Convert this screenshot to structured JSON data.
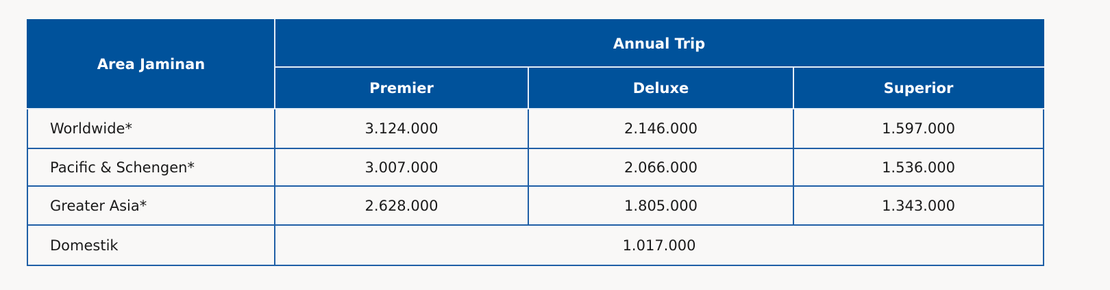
{
  "table": {
    "header_area": "Area Jaminan",
    "header_group": "Annual Trip",
    "columns": [
      "Premier",
      "Deluxe",
      "Superior"
    ],
    "rows": [
      {
        "area": "Worldwide*",
        "values": [
          "3.124.000",
          "2.146.000",
          "1.597.000"
        ]
      },
      {
        "area": "Pacific & Schengen*",
        "values": [
          "3.007.000",
          "2.066.000",
          "1.536.000"
        ]
      },
      {
        "area": "Greater Asia*",
        "values": [
          "2.628.000",
          "1.805.000",
          "1.343.000"
        ]
      }
    ],
    "domestic": {
      "area": "Domestik",
      "value": "1.017.000"
    }
  },
  "colors": {
    "header_bg": "#00529b",
    "border": "#1f5fa6",
    "background": "#f9f8f7"
  }
}
